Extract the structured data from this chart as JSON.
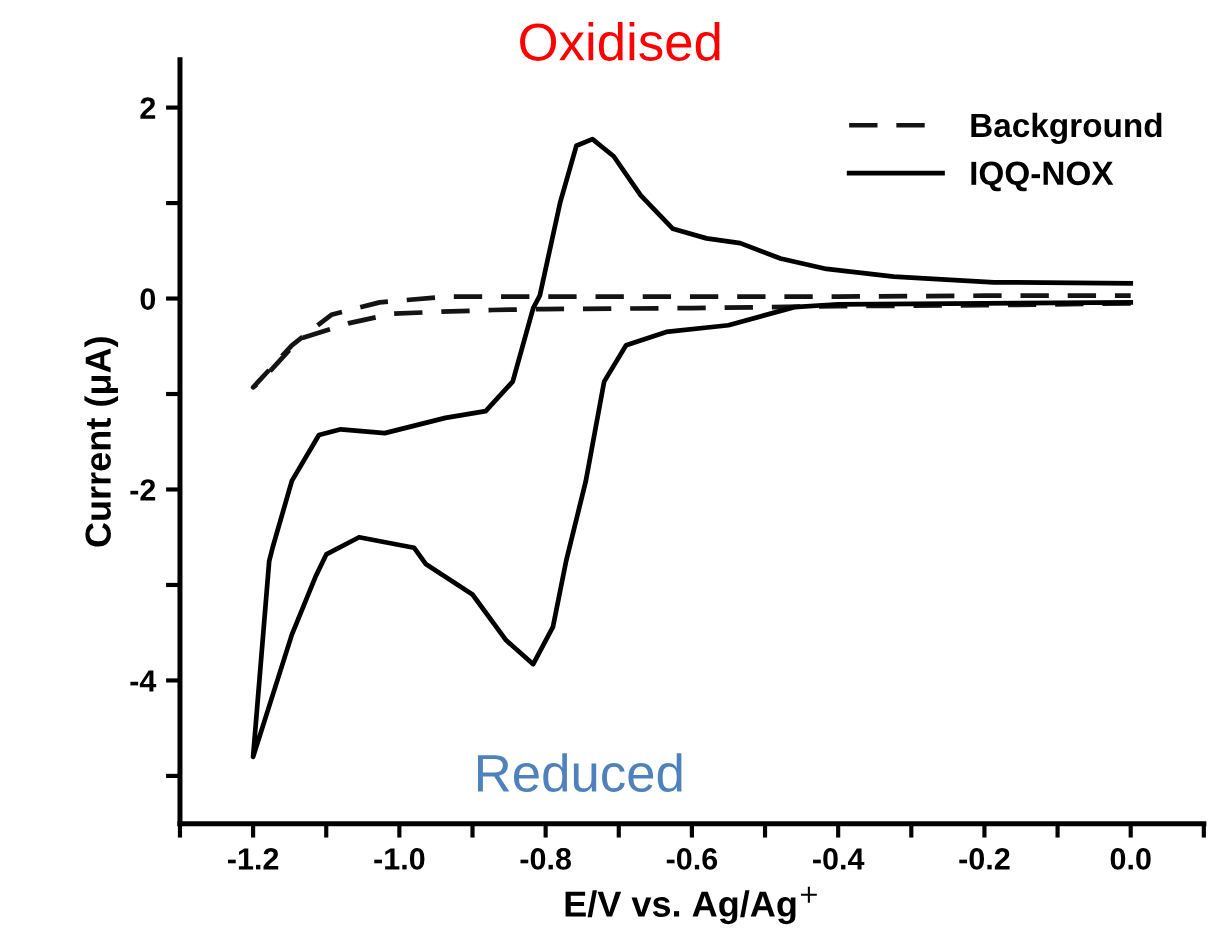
{
  "chart_data": {
    "type": "line",
    "xlabel": "E/V vs. Ag/Ag$^{+}$",
    "ylabel": "Current (μA)",
    "xlim": [
      -1.3,
      0.1
    ],
    "ylim": [
      -5.5,
      2.5
    ],
    "xticks": [
      {
        "value": -1.3,
        "label": null
      },
      -1.2,
      {
        "value": -1.1,
        "label": null
      },
      {
        "value": -1,
        "label": "-1.0"
      },
      {
        "value": -0.9,
        "label": null
      },
      -0.8,
      {
        "value": -0.7,
        "label": null
      },
      -0.6,
      {
        "value": -0.5,
        "label": null
      },
      -0.4,
      {
        "value": -0.3,
        "label": null
      },
      -0.2,
      {
        "value": -0.1,
        "label": null
      },
      {
        "value": 0,
        "label": "0.0"
      },
      {
        "value": 0.1,
        "label": null
      }
    ],
    "yticks": [
      {
        "value": -5,
        "label": null
      },
      -4,
      {
        "value": -3,
        "label": null
      },
      -2,
      {
        "value": -1,
        "label": null
      },
      0,
      {
        "value": 1,
        "label": null
      },
      2
    ],
    "legend": "top right",
    "grid": false,
    "annotations": [
      "Oxidised",
      "Reduced"
    ],
    "series": [
      {
        "name": "Background",
        "color": "#141414",
        "line_style": "dashed",
        "x": [
          0.0,
          -0.2,
          -0.4,
          -0.6,
          -0.8,
          -0.872,
          -0.95,
          -1.01,
          -1.07,
          -1.136,
          -1.19,
          -1.2,
          -1.147,
          -1.093,
          -1.027,
          -0.937,
          -0.8,
          -0.6,
          -0.4,
          -0.2,
          0.0
        ],
        "values": [
          -0.05,
          -0.07,
          -0.08,
          -0.1,
          -0.11,
          -0.12,
          -0.14,
          -0.16,
          -0.26,
          -0.42,
          -0.87,
          -0.93,
          -0.49,
          -0.17,
          -0.04,
          0.02,
          0.02,
          0.02,
          0.02,
          0.03,
          0.03
        ]
      },
      {
        "name": "IQQ-NOX",
        "color": "#000000",
        "line_style": "solid",
        "x": [
          0.0,
          -0.2,
          -0.4,
          -0.46,
          -0.55,
          -0.635,
          -0.69,
          -0.72,
          -0.745,
          -0.772,
          -0.79,
          -0.817,
          -0.854,
          -0.9,
          -0.964,
          -0.98,
          -1.055,
          -1.1,
          -1.115,
          -1.147,
          -1.2,
          -1.178,
          -1.173,
          -1.147,
          -1.11,
          -1.08,
          -1.02,
          -0.937,
          -0.882,
          -0.845,
          -0.817,
          -0.808,
          -0.78,
          -0.758,
          -0.736,
          -0.707,
          -0.67,
          -0.626,
          -0.58,
          -0.534,
          -0.479,
          -0.416,
          -0.324,
          -0.187,
          0.0
        ],
        "values": [
          -0.04,
          -0.05,
          -0.06,
          -0.09,
          -0.28,
          -0.35,
          -0.49,
          -0.87,
          -1.91,
          -2.75,
          -3.44,
          -3.83,
          -3.58,
          -3.1,
          -2.78,
          -2.61,
          -2.5,
          -2.68,
          -2.92,
          -3.52,
          -4.8,
          -2.75,
          -2.6,
          -1.91,
          -1.43,
          -1.37,
          -1.41,
          -1.25,
          -1.18,
          -0.87,
          -0.1,
          0.03,
          1.01,
          1.6,
          1.67,
          1.49,
          1.08,
          0.73,
          0.63,
          0.58,
          0.42,
          0.31,
          0.23,
          0.17,
          0.16
        ]
      }
    ]
  }
}
